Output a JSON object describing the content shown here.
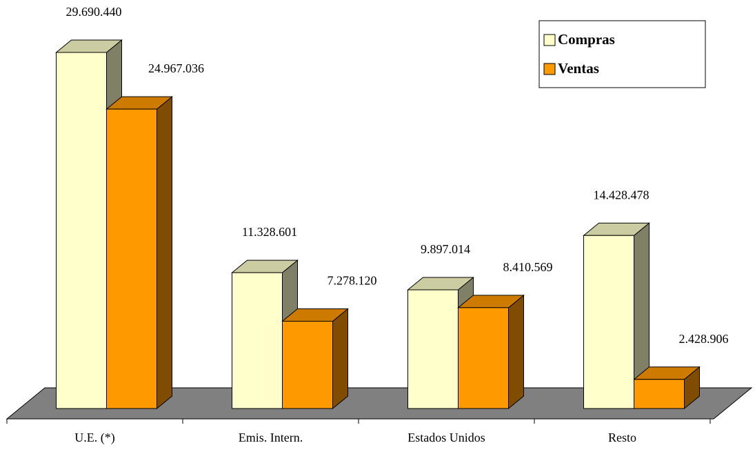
{
  "chart_data": {
    "type": "bar",
    "categories": [
      "U.E. (*)",
      "Emis. Intern.",
      "Estados Unidos",
      "Resto"
    ],
    "series": [
      {
        "name": "Compras",
        "color": "#FFFFCC",
        "values": [
          29690440,
          11328601,
          9897014,
          14428478
        ],
        "value_labels": [
          "29.690.440",
          "11.328.601",
          "9.897.014",
          "14.428.478"
        ]
      },
      {
        "name": "Ventas",
        "color": "#FF9900",
        "values": [
          24967036,
          7278120,
          8410569,
          2428906
        ],
        "value_labels": [
          "24.967.036",
          "7.278.120",
          "8.410.569",
          "2.428.906"
        ]
      }
    ],
    "legend": "upper right"
  }
}
